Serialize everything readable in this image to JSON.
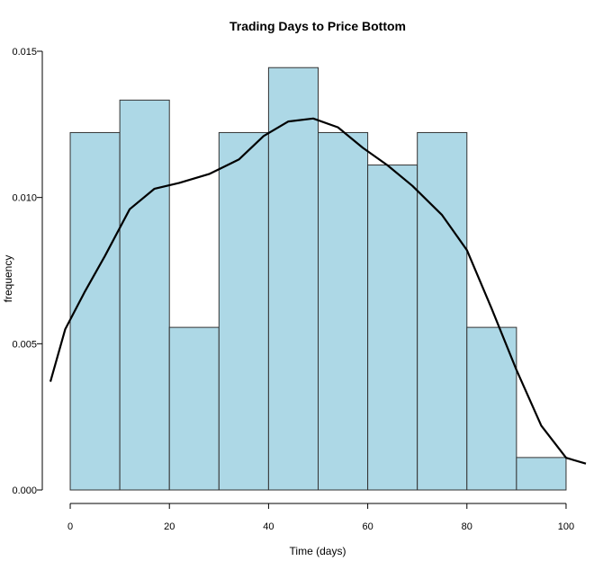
{
  "chart_data": {
    "type": "bar",
    "title": "Trading Days to Price Bottom",
    "xlabel": "Time (days)",
    "ylabel": "frequency",
    "bins": [
      {
        "from": 0,
        "to": 10,
        "value": 0.01222
      },
      {
        "from": 10,
        "to": 20,
        "value": 0.01333
      },
      {
        "from": 20,
        "to": 30,
        "value": 0.00556
      },
      {
        "from": 30,
        "to": 40,
        "value": 0.01222
      },
      {
        "from": 40,
        "to": 50,
        "value": 0.01444
      },
      {
        "from": 50,
        "to": 60,
        "value": 0.01222
      },
      {
        "from": 60,
        "to": 70,
        "value": 0.01111
      },
      {
        "from": 70,
        "to": 80,
        "value": 0.01222
      },
      {
        "from": 80,
        "to": 90,
        "value": 0.00556
      },
      {
        "from": 90,
        "to": 100,
        "value": 0.00111
      }
    ],
    "density_curve": [
      {
        "x": -4,
        "y": 0.0037
      },
      {
        "x": -1,
        "y": 0.0055
      },
      {
        "x": 3,
        "y": 0.0068
      },
      {
        "x": 7,
        "y": 0.008
      },
      {
        "x": 12,
        "y": 0.0096
      },
      {
        "x": 17,
        "y": 0.0103
      },
      {
        "x": 22,
        "y": 0.0105
      },
      {
        "x": 28,
        "y": 0.0108
      },
      {
        "x": 34,
        "y": 0.0113
      },
      {
        "x": 39,
        "y": 0.0121
      },
      {
        "x": 44,
        "y": 0.0126
      },
      {
        "x": 49,
        "y": 0.0127
      },
      {
        "x": 54,
        "y": 0.0124
      },
      {
        "x": 59,
        "y": 0.0117
      },
      {
        "x": 64,
        "y": 0.0111
      },
      {
        "x": 69,
        "y": 0.0104
      },
      {
        "x": 75,
        "y": 0.0094
      },
      {
        "x": 80,
        "y": 0.0082
      },
      {
        "x": 85,
        "y": 0.0062
      },
      {
        "x": 90,
        "y": 0.0041
      },
      {
        "x": 95,
        "y": 0.0022
      },
      {
        "x": 100,
        "y": 0.0011
      },
      {
        "x": 104,
        "y": 0.0009
      }
    ],
    "xticks": [
      0,
      20,
      40,
      60,
      80,
      100
    ],
    "xtick_labels": [
      "0",
      "20",
      "40",
      "60",
      "80",
      "100"
    ],
    "yticks": [
      0,
      0.005,
      0.01,
      0.015
    ],
    "ytick_labels": [
      "0.000",
      "0.005",
      "0.010",
      "0.015"
    ],
    "xlim": [
      -4,
      104
    ],
    "ylim": [
      0,
      0.015
    ],
    "grid": false,
    "colors": {
      "bar_fill": "#add8e6",
      "bar_stroke": "#333333",
      "curve": "#000000"
    }
  }
}
